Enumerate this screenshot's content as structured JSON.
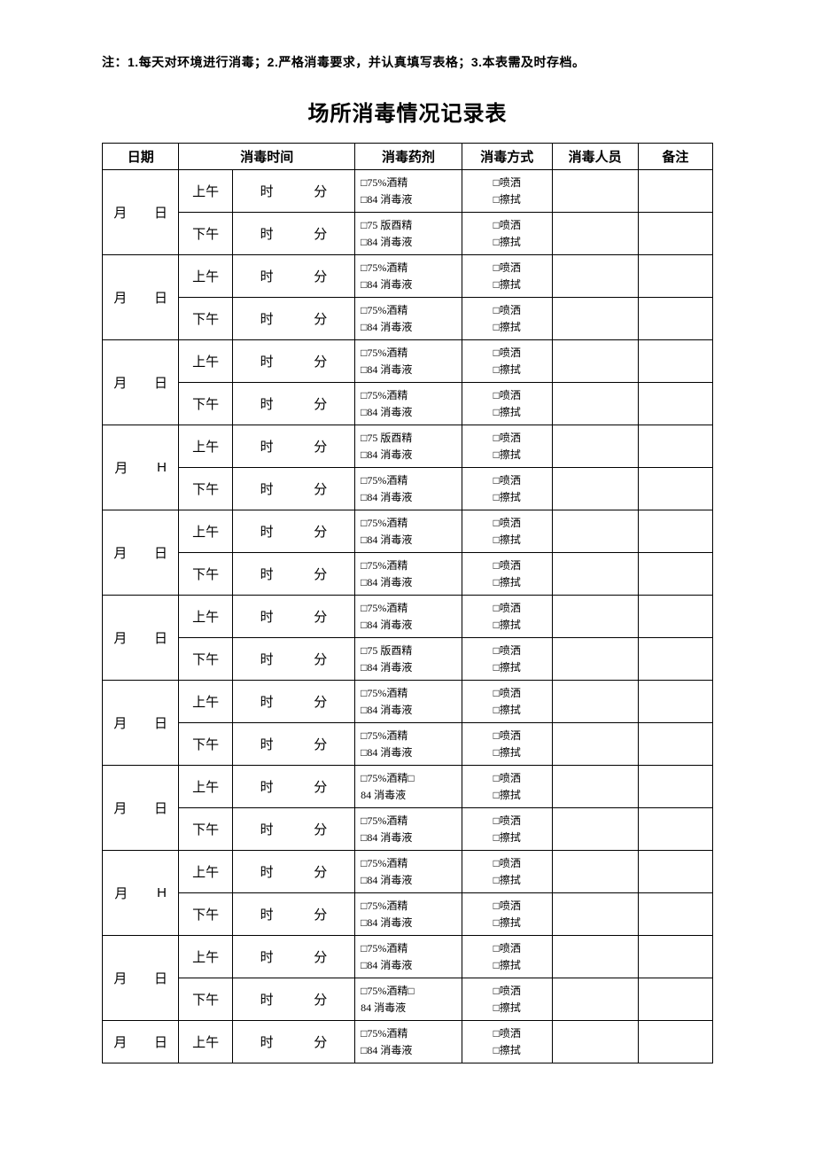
{
  "note": "注：1.每天对环境进行消毒；2.严格消毒要求，并认真填写表格；3.本表需及时存档。",
  "title": "场所消毒情况记录表",
  "headers": {
    "date": "日期",
    "disinfect_time": "消毒时间",
    "agent": "消毒药剂",
    "method": "消毒方式",
    "person": "消毒人员",
    "remark": "备注"
  },
  "labels": {
    "month": "月",
    "day": "日",
    "dayH": "H",
    "am": "上午",
    "pm": "下午",
    "hour": "时",
    "minute": "分"
  },
  "agent_text": {
    "normal": "□75%酒精<br>□84 消毒液",
    "variant_ban": "□75 版酉精<br>□84 消毒液",
    "variant_inline": "□75%酒精□<br>84 消毒液"
  },
  "method_text": "□喷洒<br>□擦拭",
  "rows": [
    {
      "day": "日",
      "slots": [
        {
          "ampm": "am",
          "agent": "normal"
        },
        {
          "ampm": "pm",
          "agent": "variant_ban"
        }
      ]
    },
    {
      "day": "日",
      "slots": [
        {
          "ampm": "am",
          "agent": "normal"
        },
        {
          "ampm": "pm",
          "agent": "normal"
        }
      ]
    },
    {
      "day": "日",
      "slots": [
        {
          "ampm": "am",
          "agent": "normal"
        },
        {
          "ampm": "pm",
          "agent": "normal"
        }
      ]
    },
    {
      "day": "H",
      "slots": [
        {
          "ampm": "am",
          "agent": "variant_ban"
        },
        {
          "ampm": "pm",
          "agent": "normal"
        }
      ]
    },
    {
      "day": "日",
      "slots": [
        {
          "ampm": "am",
          "agent": "normal"
        },
        {
          "ampm": "pm",
          "agent": "normal"
        }
      ]
    },
    {
      "day": "日",
      "slots": [
        {
          "ampm": "am",
          "agent": "normal"
        },
        {
          "ampm": "pm",
          "agent": "variant_ban"
        }
      ]
    },
    {
      "day": "日",
      "slots": [
        {
          "ampm": "am",
          "agent": "normal"
        },
        {
          "ampm": "pm",
          "agent": "normal"
        }
      ]
    },
    {
      "day": "日",
      "slots": [
        {
          "ampm": "am",
          "agent": "variant_inline"
        },
        {
          "ampm": "pm",
          "agent": "normal"
        }
      ]
    },
    {
      "day": "H",
      "slots": [
        {
          "ampm": "am",
          "agent": "normal"
        },
        {
          "ampm": "pm",
          "agent": "normal"
        }
      ]
    },
    {
      "day": "日",
      "slots": [
        {
          "ampm": "am",
          "agent": "normal"
        },
        {
          "ampm": "pm",
          "agent": "variant_inline"
        }
      ]
    },
    {
      "day": "日",
      "slots": [
        {
          "ampm": "am",
          "agent": "normal"
        }
      ]
    }
  ]
}
